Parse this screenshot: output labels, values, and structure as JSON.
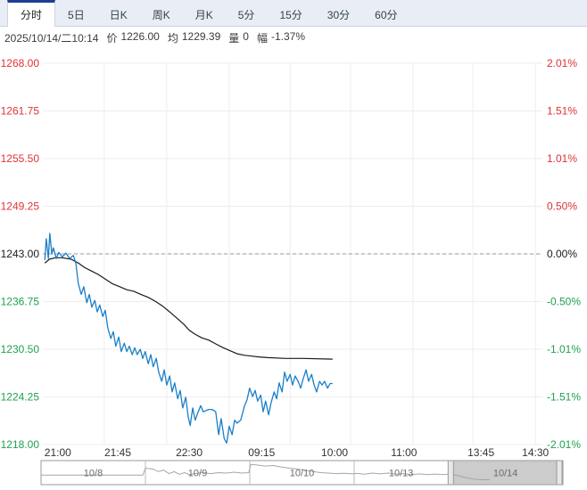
{
  "tabs": {
    "items": [
      {
        "key": "intraday",
        "label": "分时",
        "active": true
      },
      {
        "key": "5day",
        "label": "5日",
        "active": false
      },
      {
        "key": "daily-k",
        "label": "日K",
        "active": false
      },
      {
        "key": "weekly-k",
        "label": "周K",
        "active": false
      },
      {
        "key": "monthly-k",
        "label": "月K",
        "active": false
      },
      {
        "key": "5min",
        "label": "5分",
        "active": false
      },
      {
        "key": "15min",
        "label": "15分",
        "active": false
      },
      {
        "key": "30min",
        "label": "30分",
        "active": false
      },
      {
        "key": "60min",
        "label": "60分",
        "active": false
      }
    ]
  },
  "status": {
    "datetime": "2025/10/14/二10:14",
    "price_label": "价",
    "price_value": "1226.00",
    "avg_label": "均",
    "avg_value": "1229.39",
    "volume_label": "量",
    "volume_value": "0",
    "change_label": "幅",
    "change_value": "-1.37%"
  },
  "colors": {
    "up": "#e03232",
    "down": "#1fa24e",
    "flat": "#1a1a1a",
    "price_line": "#1b7fc8",
    "avg_line": "#1a1a1a",
    "grid": "#ededed",
    "prev_close_dash": "#999999",
    "tab_active_accent": "#1c3f94",
    "tabbar_bg": "#e9eef6",
    "axis_x_text": "#333333",
    "nav_border": "#999999",
    "nav_spark": "#a6a6a6",
    "nav_text": "#6b6b6b",
    "nav_selected": "#a2a2a2",
    "nav_handle": "#e8e8e8"
  },
  "chart_data": {
    "type": "line",
    "title": "",
    "xlabel": "",
    "ylabel": "",
    "ylim": [
      1218,
      1268
    ],
    "prev_close": 1243.0,
    "grid": true,
    "left_ticks": [
      {
        "label": "1268.00",
        "value": 1268.0,
        "tone": "up"
      },
      {
        "label": "1261.75",
        "value": 1261.75,
        "tone": "up"
      },
      {
        "label": "1255.50",
        "value": 1255.5,
        "tone": "up"
      },
      {
        "label": "1249.25",
        "value": 1249.25,
        "tone": "up"
      },
      {
        "label": "1243.00",
        "value": 1243.0,
        "tone": "flat"
      },
      {
        "label": "1236.75",
        "value": 1236.75,
        "tone": "down"
      },
      {
        "label": "1230.50",
        "value": 1230.5,
        "tone": "down"
      },
      {
        "label": "1224.25",
        "value": 1224.25,
        "tone": "down"
      },
      {
        "label": "1218.00",
        "value": 1218.0,
        "tone": "down"
      }
    ],
    "right_ticks": [
      {
        "label": "2.01%",
        "tone": "up"
      },
      {
        "label": "1.51%",
        "tone": "up"
      },
      {
        "label": "1.01%",
        "tone": "up"
      },
      {
        "label": "0.50%",
        "tone": "up"
      },
      {
        "label": "0.00%",
        "tone": "flat"
      },
      {
        "label": "-0.50%",
        "tone": "down"
      },
      {
        "label": "-1.01%",
        "tone": "down"
      },
      {
        "label": "-1.51%",
        "tone": "down"
      },
      {
        "label": "-2.01%",
        "tone": "down"
      }
    ],
    "x_ticks": [
      {
        "label": "21:00",
        "f": 0.03
      },
      {
        "label": "21:45",
        "f": 0.15
      },
      {
        "label": "22:30",
        "f": 0.293
      },
      {
        "label": "09:15",
        "f": 0.438
      },
      {
        "label": "10:00",
        "f": 0.584
      },
      {
        "label": "11:00",
        "f": 0.723
      },
      {
        "label": "13:45",
        "f": 0.877
      },
      {
        "label": "14:30",
        "f": 0.986
      }
    ],
    "v_grid": [
      0.123,
      0.248,
      0.373,
      0.495,
      0.616,
      0.741,
      0.861,
      0.986
    ],
    "series": [
      {
        "name": "price",
        "points": [
          [
            0.004,
            1242.2
          ],
          [
            0.007,
            1245.0
          ],
          [
            0.011,
            1242.4
          ],
          [
            0.014,
            1245.7
          ],
          [
            0.018,
            1243.0
          ],
          [
            0.021,
            1243.8
          ],
          [
            0.027,
            1242.4
          ],
          [
            0.032,
            1243.2
          ],
          [
            0.039,
            1242.6
          ],
          [
            0.046,
            1243.1
          ],
          [
            0.054,
            1242.4
          ],
          [
            0.061,
            1242.8
          ],
          [
            0.066,
            1241.8
          ],
          [
            0.071,
            1239.1
          ],
          [
            0.077,
            1237.7
          ],
          [
            0.082,
            1238.7
          ],
          [
            0.088,
            1236.6
          ],
          [
            0.093,
            1237.7
          ],
          [
            0.098,
            1236.0
          ],
          [
            0.104,
            1236.9
          ],
          [
            0.109,
            1235.4
          ],
          [
            0.114,
            1236.3
          ],
          [
            0.12,
            1234.8
          ],
          [
            0.125,
            1235.6
          ],
          [
            0.13,
            1233.3
          ],
          [
            0.136,
            1231.9
          ],
          [
            0.141,
            1232.8
          ],
          [
            0.146,
            1230.9
          ],
          [
            0.152,
            1232.1
          ],
          [
            0.157,
            1230.2
          ],
          [
            0.163,
            1231.3
          ],
          [
            0.168,
            1230.2
          ],
          [
            0.173,
            1230.9
          ],
          [
            0.179,
            1229.8
          ],
          [
            0.184,
            1230.7
          ],
          [
            0.189,
            1229.8
          ],
          [
            0.195,
            1230.5
          ],
          [
            0.2,
            1229.3
          ],
          [
            0.205,
            1230.2
          ],
          [
            0.211,
            1228.6
          ],
          [
            0.216,
            1229.8
          ],
          [
            0.221,
            1228.2
          ],
          [
            0.227,
            1229.3
          ],
          [
            0.232,
            1227.5
          ],
          [
            0.238,
            1226.3
          ],
          [
            0.243,
            1227.8
          ],
          [
            0.248,
            1225.8
          ],
          [
            0.254,
            1227.0
          ],
          [
            0.259,
            1224.9
          ],
          [
            0.264,
            1226.1
          ],
          [
            0.27,
            1224.0
          ],
          [
            0.275,
            1225.1
          ],
          [
            0.28,
            1222.8
          ],
          [
            0.286,
            1224.2
          ],
          [
            0.291,
            1221.6
          ],
          [
            0.295,
            1220.5
          ],
          [
            0.3,
            1222.8
          ],
          [
            0.305,
            1221.2
          ],
          [
            0.311,
            1222.3
          ],
          [
            0.316,
            1223.1
          ],
          [
            0.321,
            1222.3
          ],
          [
            0.332,
            1222.6
          ],
          [
            0.339,
            1222.6
          ],
          [
            0.346,
            1222.3
          ],
          [
            0.352,
            1219.3
          ],
          [
            0.357,
            1221.4
          ],
          [
            0.363,
            1218.8
          ],
          [
            0.368,
            1218.2
          ],
          [
            0.373,
            1220.4
          ],
          [
            0.379,
            1219.3
          ],
          [
            0.384,
            1221.2
          ],
          [
            0.389,
            1220.8
          ],
          [
            0.396,
            1221.2
          ],
          [
            0.404,
            1223.1
          ],
          [
            0.409,
            1223.9
          ],
          [
            0.414,
            1225.4
          ],
          [
            0.42,
            1224.3
          ],
          [
            0.425,
            1225.1
          ],
          [
            0.43,
            1223.7
          ],
          [
            0.436,
            1224.5
          ],
          [
            0.441,
            1222.3
          ],
          [
            0.446,
            1223.7
          ],
          [
            0.452,
            1221.9
          ],
          [
            0.457,
            1223.5
          ],
          [
            0.463,
            1224.9
          ],
          [
            0.468,
            1224.0
          ],
          [
            0.473,
            1226.1
          ],
          [
            0.479,
            1224.9
          ],
          [
            0.484,
            1227.5
          ],
          [
            0.489,
            1226.3
          ],
          [
            0.495,
            1227.2
          ],
          [
            0.5,
            1225.8
          ],
          [
            0.505,
            1227.0
          ],
          [
            0.511,
            1226.3
          ],
          [
            0.516,
            1225.4
          ],
          [
            0.521,
            1226.6
          ],
          [
            0.527,
            1227.8
          ],
          [
            0.532,
            1226.3
          ],
          [
            0.538,
            1227.2
          ],
          [
            0.543,
            1225.8
          ],
          [
            0.548,
            1224.9
          ],
          [
            0.554,
            1226.3
          ],
          [
            0.559,
            1225.8
          ],
          [
            0.564,
            1226.3
          ],
          [
            0.57,
            1225.4
          ],
          [
            0.575,
            1226.0
          ],
          [
            0.58,
            1226.0
          ]
        ]
      },
      {
        "name": "avg",
        "points": [
          [
            0.004,
            1241.8
          ],
          [
            0.013,
            1242.3
          ],
          [
            0.025,
            1242.5
          ],
          [
            0.039,
            1242.5
          ],
          [
            0.057,
            1242.3
          ],
          [
            0.071,
            1241.8
          ],
          [
            0.084,
            1241.2
          ],
          [
            0.096,
            1240.8
          ],
          [
            0.111,
            1240.3
          ],
          [
            0.125,
            1239.7
          ],
          [
            0.139,
            1239.1
          ],
          [
            0.154,
            1238.7
          ],
          [
            0.168,
            1238.3
          ],
          [
            0.182,
            1238.1
          ],
          [
            0.196,
            1237.7
          ],
          [
            0.211,
            1237.3
          ],
          [
            0.225,
            1236.8
          ],
          [
            0.239,
            1236.2
          ],
          [
            0.254,
            1235.4
          ],
          [
            0.268,
            1234.6
          ],
          [
            0.282,
            1233.8
          ],
          [
            0.293,
            1233.0
          ],
          [
            0.304,
            1232.5
          ],
          [
            0.318,
            1232.0
          ],
          [
            0.332,
            1231.7
          ],
          [
            0.346,
            1231.2
          ],
          [
            0.361,
            1230.7
          ],
          [
            0.375,
            1230.3
          ],
          [
            0.389,
            1229.9
          ],
          [
            0.404,
            1229.7
          ],
          [
            0.418,
            1229.6
          ],
          [
            0.432,
            1229.5
          ],
          [
            0.45,
            1229.4
          ],
          [
            0.486,
            1229.3
          ],
          [
            0.521,
            1229.3
          ],
          [
            0.58,
            1229.2
          ]
        ]
      }
    ]
  },
  "navigator": {
    "days": [
      {
        "label": "10/8",
        "f_start": 0.0,
        "f_end": 0.2,
        "selected": false
      },
      {
        "label": "10/9",
        "f_start": 0.2,
        "f_end": 0.4,
        "selected": false
      },
      {
        "label": "10/10",
        "f_start": 0.4,
        "f_end": 0.6,
        "selected": false
      },
      {
        "label": "10/13",
        "f_start": 0.6,
        "f_end": 0.78,
        "selected": false
      },
      {
        "label": "10/14",
        "f_start": 0.78,
        "f_end": 1.0,
        "selected": true
      }
    ],
    "spark": [
      [
        0.0,
        0.62
      ],
      [
        0.195,
        0.62
      ],
      [
        0.2,
        0.28
      ],
      [
        0.215,
        0.33
      ],
      [
        0.225,
        0.45
      ],
      [
        0.235,
        0.38
      ],
      [
        0.245,
        0.55
      ],
      [
        0.255,
        0.45
      ],
      [
        0.265,
        0.58
      ],
      [
        0.275,
        0.5
      ],
      [
        0.285,
        0.6
      ],
      [
        0.295,
        0.55
      ],
      [
        0.31,
        0.5
      ],
      [
        0.325,
        0.55
      ],
      [
        0.34,
        0.5
      ],
      [
        0.355,
        0.52
      ],
      [
        0.37,
        0.48
      ],
      [
        0.385,
        0.52
      ],
      [
        0.398,
        0.5
      ],
      [
        0.402,
        0.1
      ],
      [
        0.415,
        0.13
      ],
      [
        0.43,
        0.18
      ],
      [
        0.445,
        0.15
      ],
      [
        0.46,
        0.22
      ],
      [
        0.475,
        0.28
      ],
      [
        0.49,
        0.32
      ],
      [
        0.505,
        0.38
      ],
      [
        0.52,
        0.44
      ],
      [
        0.535,
        0.5
      ],
      [
        0.55,
        0.52
      ],
      [
        0.565,
        0.55
      ],
      [
        0.58,
        0.53
      ],
      [
        0.598,
        0.56
      ],
      [
        0.605,
        0.54
      ],
      [
        0.62,
        0.58
      ],
      [
        0.635,
        0.52
      ],
      [
        0.65,
        0.56
      ],
      [
        0.665,
        0.52
      ],
      [
        0.68,
        0.58
      ],
      [
        0.695,
        0.55
      ],
      [
        0.71,
        0.6
      ],
      [
        0.725,
        0.56
      ],
      [
        0.74,
        0.6
      ],
      [
        0.755,
        0.57
      ],
      [
        0.77,
        0.6
      ],
      [
        0.78,
        0.58
      ],
      [
        0.79,
        0.6
      ],
      [
        0.8,
        0.65
      ],
      [
        0.81,
        0.72
      ],
      [
        0.82,
        0.78
      ],
      [
        0.832,
        0.82
      ],
      [
        0.845,
        0.85
      ],
      [
        0.86,
        0.85
      ]
    ]
  }
}
